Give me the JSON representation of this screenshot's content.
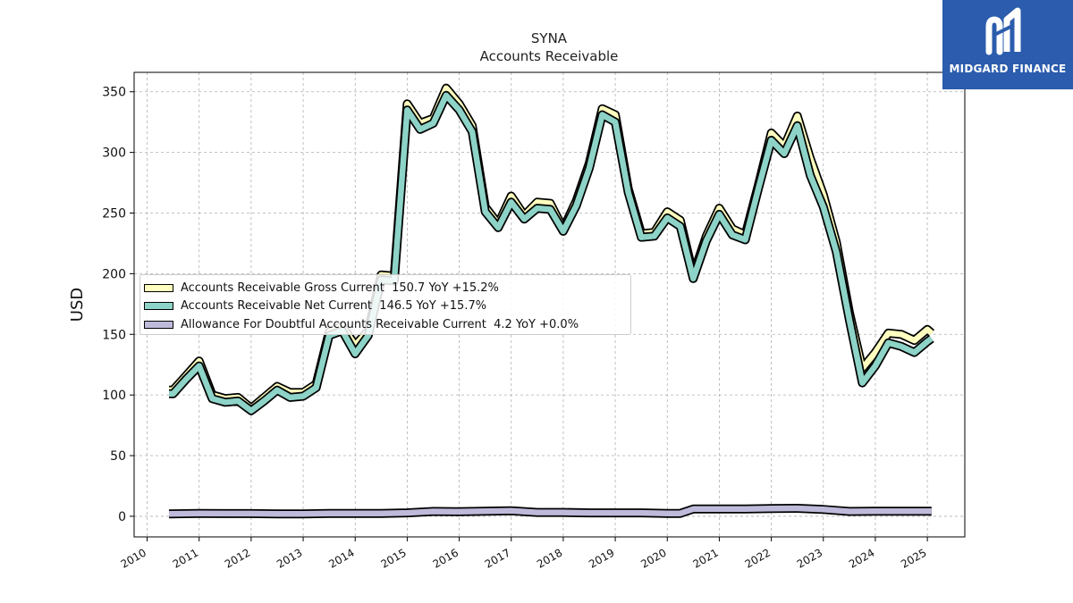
{
  "brand": {
    "name": "MIDGARD FINANCE",
    "logo_icon": "midgard-m-logo-icon",
    "background": "#2b5cad"
  },
  "chart_data": {
    "type": "line",
    "title": "SYNA",
    "subtitle": "Accounts Receivable",
    "xlabel": "",
    "ylabel": "USD",
    "xlim": [
      2009.75,
      2025.72
    ],
    "ylim": [
      -17,
      366
    ],
    "x_ticks": [
      "2010",
      "2011",
      "2012",
      "2013",
      "2014",
      "2015",
      "2016",
      "2017",
      "2018",
      "2019",
      "2020",
      "2021",
      "2022",
      "2023",
      "2024",
      "2025"
    ],
    "y_ticks": [
      0,
      50,
      100,
      150,
      200,
      250,
      300,
      350
    ],
    "grid": true,
    "legend_position": "center-left",
    "series": [
      {
        "name": "Accounts Receivable Gross Current",
        "legend": "Accounts Receivable Gross Current  150.7 YoY +15.2%",
        "color": "#ffffbf",
        "x": [
          2010.42,
          2010.5,
          2010.75,
          2011.0,
          2011.25,
          2011.5,
          2011.75,
          2012.0,
          2012.25,
          2012.5,
          2012.75,
          2013.0,
          2013.25,
          2013.5,
          2013.75,
          2014.0,
          2014.25,
          2014.5,
          2014.75,
          2015.0,
          2015.25,
          2015.5,
          2015.75,
          2016.0,
          2016.25,
          2016.5,
          2016.75,
          2017.0,
          2017.25,
          2017.5,
          2017.75,
          2018.0,
          2018.25,
          2018.5,
          2018.75,
          2019.0,
          2019.25,
          2019.5,
          2019.75,
          2020.0,
          2020.25,
          2020.5,
          2020.75,
          2021.0,
          2021.25,
          2021.5,
          2021.75,
          2022.0,
          2022.25,
          2022.5,
          2022.75,
          2023.0,
          2023.25,
          2023.5,
          2023.75,
          2024.0,
          2024.25,
          2024.5,
          2024.75,
          2025.0,
          2025.08
        ],
        "y": [
          104,
          104,
          116,
          128,
          100,
          97,
          98,
          89,
          98,
          107,
          102,
          102,
          109,
          152,
          157,
          141,
          153,
          199,
          198,
          340,
          324,
          328,
          353,
          340,
          322,
          255,
          241,
          264,
          248,
          259,
          258,
          237,
          260,
          291,
          336,
          331,
          270,
          233,
          234,
          251,
          244,
          199,
          231,
          254,
          237,
          232,
          273,
          316,
          305,
          330,
          295,
          265,
          226,
          168,
          122,
          135,
          151,
          150,
          145,
          154,
          151
        ]
      },
      {
        "name": "Accounts Receivable Net Current",
        "legend": "Accounts Receivable Net Current  146.5 YoY +15.7%",
        "color": "#8dd3c7",
        "x": [
          2010.42,
          2010.5,
          2010.75,
          2011.0,
          2011.25,
          2011.5,
          2011.75,
          2012.0,
          2012.25,
          2012.5,
          2012.75,
          2013.0,
          2013.25,
          2013.5,
          2013.75,
          2014.0,
          2014.25,
          2014.5,
          2014.75,
          2015.0,
          2015.25,
          2015.5,
          2015.75,
          2016.0,
          2016.25,
          2016.5,
          2016.75,
          2017.0,
          2017.25,
          2017.5,
          2017.75,
          2018.0,
          2018.25,
          2018.5,
          2018.75,
          2019.0,
          2019.25,
          2019.5,
          2019.75,
          2020.0,
          2020.25,
          2020.5,
          2020.75,
          2021.0,
          2021.25,
          2021.5,
          2021.75,
          2022.0,
          2022.25,
          2022.5,
          2022.75,
          2023.0,
          2023.25,
          2023.5,
          2023.75,
          2024.0,
          2024.25,
          2024.5,
          2024.75,
          2025.0,
          2025.08
        ],
        "y": [
          101,
          101,
          113,
          124,
          97,
          94,
          95,
          87,
          95,
          104,
          98,
          99,
          106,
          149,
          153,
          134,
          149,
          195,
          194,
          335,
          319,
          324,
          347,
          335,
          317,
          251,
          238,
          259,
          245,
          254,
          253,
          235,
          256,
          287,
          331,
          325,
          267,
          230,
          231,
          246,
          239,
          196,
          227,
          249,
          232,
          228,
          270,
          310,
          299,
          322,
          281,
          255,
          218,
          162,
          110,
          124,
          143,
          140,
          135,
          144,
          146.5
        ]
      },
      {
        "name": "Allowance For Doubtful Accounts Receivable Current",
        "legend": "Allowance For Doubtful Accounts Receivable Current  4.2 YoY +0.0%",
        "color": "#bebada",
        "x": [
          2010.42,
          2011.0,
          2011.5,
          2012.0,
          2012.5,
          2013.0,
          2013.5,
          2014.0,
          2014.5,
          2015.0,
          2015.5,
          2016.0,
          2016.5,
          2017.0,
          2017.5,
          2018.0,
          2018.5,
          2019.0,
          2019.5,
          2020.0,
          2020.25,
          2020.5,
          2021.0,
          2021.5,
          2022.0,
          2022.5,
          2023.0,
          2023.5,
          2024.0,
          2024.5,
          2025.08
        ],
        "y": [
          2,
          2.3,
          2.2,
          2.2,
          2,
          2,
          2.3,
          2.3,
          2.3,
          2.8,
          4,
          3.8,
          4.2,
          4.6,
          3.2,
          3.2,
          2.8,
          2.8,
          2.8,
          2.4,
          2.4,
          6,
          6,
          6,
          6.4,
          6.6,
          5.6,
          4,
          4.2,
          4.2,
          4.2
        ]
      }
    ]
  }
}
